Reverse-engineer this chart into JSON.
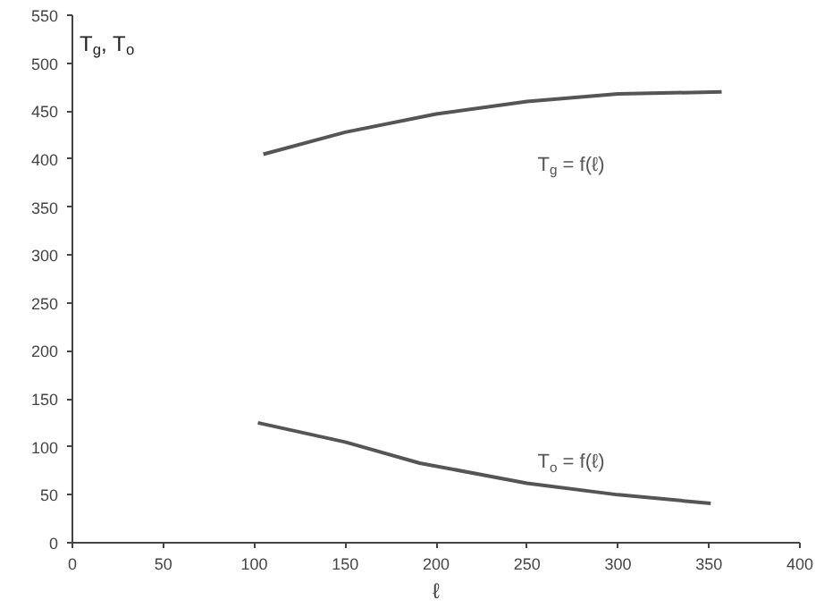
{
  "chart_data": {
    "type": "line",
    "ylabel": "T$_{g}$, T$_{o}$",
    "xlabel": "ℓ",
    "xlim": [
      0,
      400
    ],
    "ylim": [
      0,
      550
    ],
    "xticks": [
      0,
      50,
      100,
      150,
      200,
      250,
      300,
      350,
      400
    ],
    "yticks": [
      0,
      50,
      100,
      150,
      200,
      250,
      300,
      350,
      400,
      450,
      500,
      550
    ],
    "grid": false,
    "marker": "none",
    "line_style": "solid",
    "series": [
      {
        "color": "#555555",
        "x": [
          105,
          150,
          200,
          250,
          300,
          357
        ],
        "values": [
          405,
          428,
          447,
          460,
          468,
          470
        ]
      },
      {
        "color": "#555555",
        "x": [
          102,
          150,
          191,
          250,
          300,
          351
        ],
        "values": [
          125,
          105,
          83,
          62,
          50,
          41
        ]
      }
    ],
    "annotations": [
      "T$_{g}$ = f(ℓ)",
      "T$_{o}$ = f(ℓ)"
    ]
  }
}
